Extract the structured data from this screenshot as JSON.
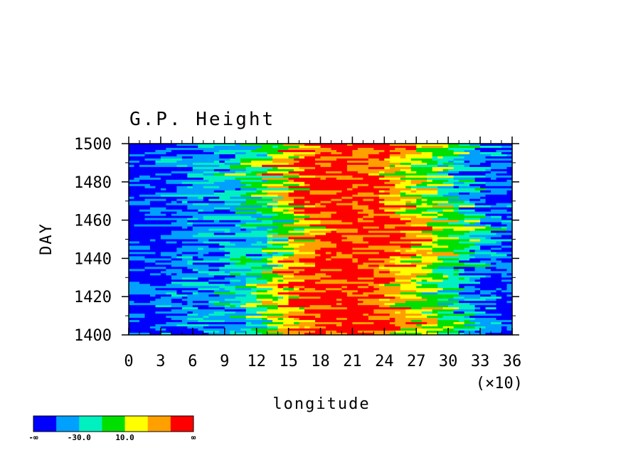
{
  "chart_data": {
    "type": "heatmap",
    "title": "G.P. Height",
    "xlabel": "longitude",
    "ylabel": "DAY",
    "x_multiplier": "(×10)",
    "xlim": [
      0,
      36
    ],
    "ylim": [
      1400,
      1500
    ],
    "x_ticks": [
      "0",
      "3",
      "6",
      "9",
      "12",
      "15",
      "18",
      "21",
      "24",
      "27",
      "30",
      "33",
      "36"
    ],
    "y_ticks": [
      "1400",
      "1420",
      "1440",
      "1460",
      "1480",
      "1500"
    ],
    "colorbar": {
      "colors": [
        "#0000ff",
        "#00a0ff",
        "#00f0c0",
        "#00e000",
        "#ffff00",
        "#ffa000",
        "#ff0000"
      ],
      "labels": [
        "-∞",
        "-30.0",
        "10.0",
        "∞"
      ]
    },
    "bands_by_longitude": {
      "x": [
        0,
        3,
        6,
        9,
        12,
        15,
        18,
        21,
        24,
        27,
        30,
        33,
        36
      ],
      "level_index": [
        0,
        0,
        1,
        1,
        2,
        4,
        6,
        6,
        6,
        4,
        3,
        1,
        0
      ]
    }
  }
}
